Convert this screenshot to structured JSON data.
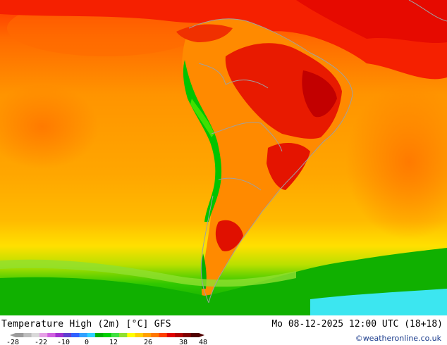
{
  "map": {
    "product": "Temperature High (2m) [°C] GFS",
    "valid_time": "Mo 08-12-2025 12:00 UTC (18+18)",
    "credit": "©weatheronline.co.uk"
  },
  "legend": {
    "ticks": [
      "-28",
      "-22",
      "-10",
      "0",
      "12",
      "26",
      "38",
      "48"
    ],
    "colors": [
      "#9b9b9b",
      "#bdbdbd",
      "#d9d9d9",
      "#e6a0e6",
      "#d060e0",
      "#a030d0",
      "#6040d0",
      "#3060ff",
      "#30a0ff",
      "#30d0ff",
      "#00b000",
      "#00d000",
      "#40e040",
      "#90e030",
      "#ffff00",
      "#ffd000",
      "#ffa000",
      "#ff7800",
      "#ff4000",
      "#e00000",
      "#b00000",
      "#800000",
      "#500000"
    ]
  },
  "palette": {
    "ocean_warm": "#ff9a00",
    "ocean_hot": "#ff5a00",
    "ocean_very_hot": "#f01800",
    "land_hot": "#e81a00",
    "land_very_hot": "#c40000",
    "cool_green": "#2ec800",
    "cold_cyan": "#3ce6f0",
    "borders": "#a0a0a0"
  }
}
